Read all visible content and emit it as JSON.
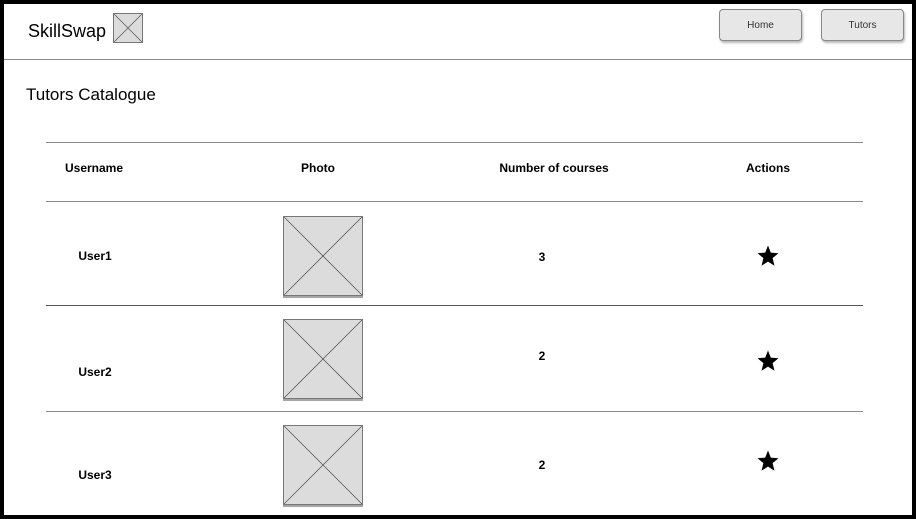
{
  "app": {
    "brand": "SkillSwap",
    "logo_icon": "image-placeholder-icon"
  },
  "nav": {
    "home_label": "Home",
    "tutors_label": "Tutors"
  },
  "page": {
    "title": "Tutors Catalogue"
  },
  "table": {
    "headers": [
      "Username",
      "Photo",
      "Number of courses",
      "Actions"
    ],
    "rows": [
      {
        "username": "User1",
        "courses": "3",
        "photo_icon": "image-placeholder-icon",
        "action_icon": "star-icon"
      },
      {
        "username": "User2",
        "courses": "2",
        "photo_icon": "image-placeholder-icon",
        "action_icon": "star-icon"
      },
      {
        "username": "User3",
        "courses": "2",
        "photo_icon": "image-placeholder-icon",
        "action_icon": "star-icon"
      }
    ]
  },
  "colors": {
    "border": "#000000",
    "divider": "#8a8a8a",
    "placeholder_fill": "#dcdcdc",
    "button_fill": "#e7e7e7"
  }
}
